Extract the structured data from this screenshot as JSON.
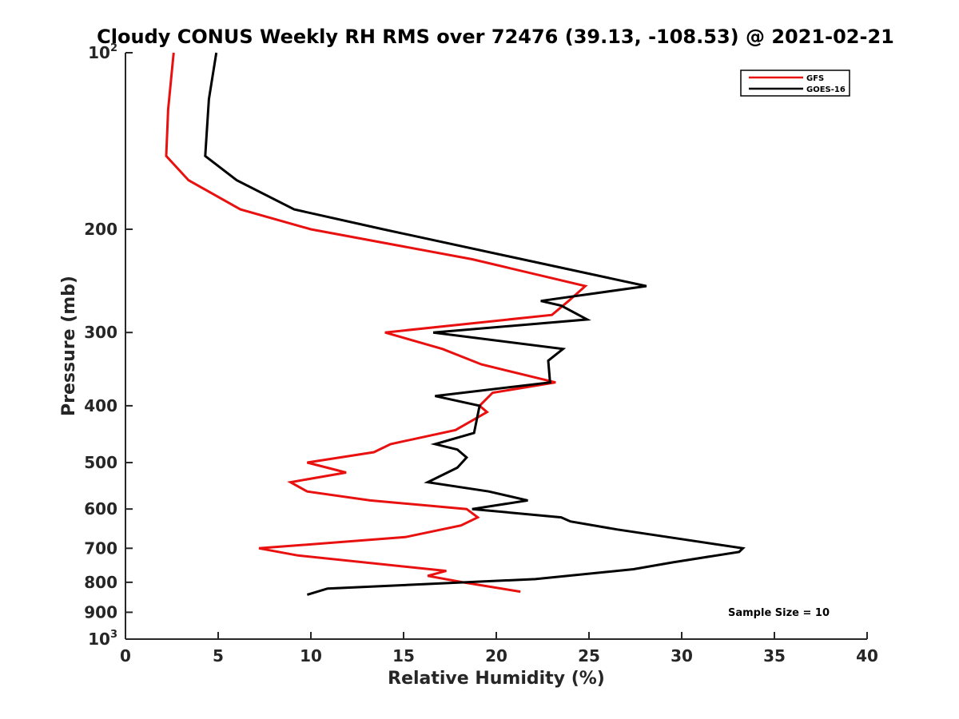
{
  "chart_data": {
    "type": "line",
    "title": "Cloudy CONUS Weekly RH RMS over 72476 (39.13, -108.53) @ 2021-02-21",
    "xlabel": "Relative Humidity (%)",
    "ylabel": "Pressure (mb)",
    "xlim": [
      0,
      40
    ],
    "ylim": [
      100,
      1000
    ],
    "y_scale": "log",
    "y_reversed": true,
    "x_ticks": [
      "0",
      "5",
      "10",
      "15",
      "20",
      "25",
      "30",
      "35",
      "40"
    ],
    "y_ticks": [
      {
        "value": 100,
        "base": "10",
        "exp": "2"
      },
      {
        "value": 200,
        "label": "200"
      },
      {
        "value": 300,
        "label": "300"
      },
      {
        "value": 400,
        "label": "400"
      },
      {
        "value": 500,
        "label": "500"
      },
      {
        "value": 600,
        "label": "600"
      },
      {
        "value": 700,
        "label": "700"
      },
      {
        "value": 800,
        "label": "800"
      },
      {
        "value": 900,
        "label": "900"
      },
      {
        "value": 1000,
        "base": "10",
        "exp": "3"
      }
    ],
    "grid": false,
    "legend_position": "top-right",
    "annotation": "Sample Size = 10",
    "series": [
      {
        "name": "GFS",
        "color": "#e8110f",
        "points": [
          [
            2.6,
            100
          ],
          [
            2.3,
            125
          ],
          [
            2.2,
            150
          ],
          [
            3.4,
            165
          ],
          [
            6.2,
            185
          ],
          [
            10.0,
            200
          ],
          [
            18.7,
            225
          ],
          [
            24.8,
            250
          ],
          [
            23.9,
            265
          ],
          [
            23.0,
            280
          ],
          [
            14.0,
            300
          ],
          [
            17.1,
            320
          ],
          [
            19.2,
            340
          ],
          [
            23.2,
            365
          ],
          [
            19.8,
            380
          ],
          [
            19.1,
            400
          ],
          [
            19.5,
            410
          ],
          [
            17.8,
            440
          ],
          [
            14.3,
            465
          ],
          [
            13.4,
            480
          ],
          [
            9.8,
            500
          ],
          [
            11.9,
            520
          ],
          [
            8.9,
            540
          ],
          [
            9.8,
            560
          ],
          [
            13.2,
            580
          ],
          [
            18.4,
            600
          ],
          [
            19.0,
            620
          ],
          [
            18.1,
            640
          ],
          [
            15.1,
            670
          ],
          [
            7.2,
            700
          ],
          [
            9.3,
            720
          ],
          [
            17.3,
            765
          ],
          [
            16.3,
            780
          ],
          [
            18.2,
            800
          ],
          [
            21.3,
            830
          ]
        ]
      },
      {
        "name": "GOES-16",
        "color": "#000000",
        "points": [
          [
            4.9,
            100
          ],
          [
            4.5,
            120
          ],
          [
            4.3,
            150
          ],
          [
            6.0,
            165
          ],
          [
            9.1,
            185
          ],
          [
            13.9,
            200
          ],
          [
            28.1,
            250
          ],
          [
            22.4,
            265
          ],
          [
            23.5,
            270
          ],
          [
            24.9,
            285
          ],
          [
            16.6,
            300
          ],
          [
            23.6,
            320
          ],
          [
            22.8,
            335
          ],
          [
            22.9,
            365
          ],
          [
            16.7,
            385
          ],
          [
            19.1,
            400
          ],
          [
            18.8,
            445
          ],
          [
            16.7,
            465
          ],
          [
            17.9,
            475
          ],
          [
            18.4,
            490
          ],
          [
            17.9,
            510
          ],
          [
            16.3,
            540
          ],
          [
            19.6,
            560
          ],
          [
            21.7,
            580
          ],
          [
            18.7,
            600
          ],
          [
            23.5,
            620
          ],
          [
            24.0,
            630
          ],
          [
            26.5,
            650
          ],
          [
            33.3,
            700
          ],
          [
            33.1,
            710
          ],
          [
            29.5,
            740
          ],
          [
            27.4,
            760
          ],
          [
            22.1,
            790
          ],
          [
            10.9,
            820
          ],
          [
            9.8,
            840
          ]
        ]
      }
    ]
  }
}
